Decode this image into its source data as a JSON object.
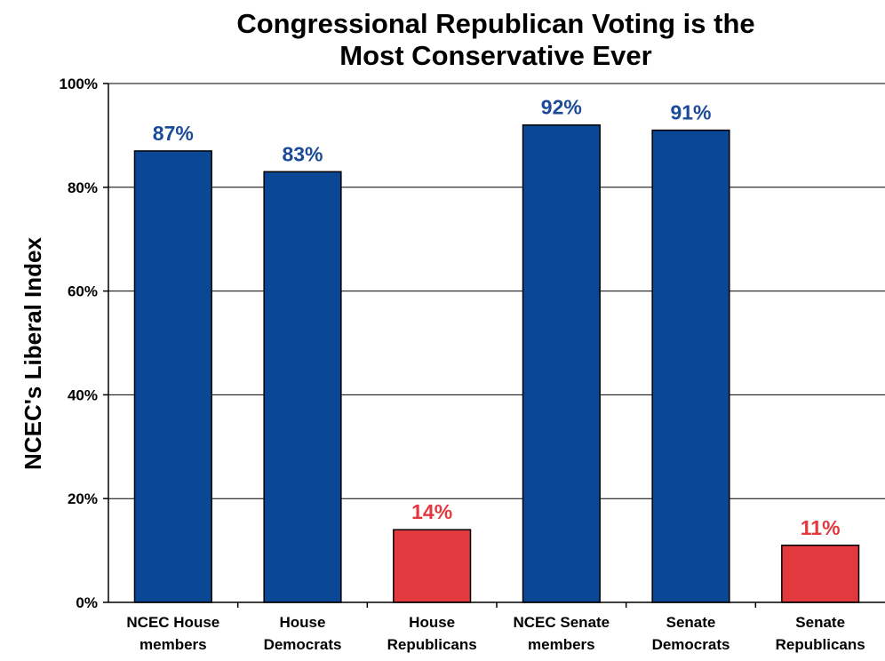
{
  "chart_data": {
    "type": "bar",
    "title_lines": [
      "Congressional Republican Voting is the",
      "Most Conservative Ever"
    ],
    "ylabel": "NCEC's Liberal Index",
    "xlabel": "",
    "ylim": [
      0,
      100
    ],
    "yticks": [
      {
        "value": 0,
        "label": "0%"
      },
      {
        "value": 20,
        "label": "20%"
      },
      {
        "value": 40,
        "label": "40%"
      },
      {
        "value": 60,
        "label": "60%"
      },
      {
        "value": 80,
        "label": "80%"
      },
      {
        "value": 100,
        "label": "100%"
      }
    ],
    "grid": true,
    "categories": [
      [
        "NCEC House",
        "members"
      ],
      [
        "House",
        "Democrats"
      ],
      [
        "House",
        "Republicans"
      ],
      [
        "NCEC Senate",
        "members"
      ],
      [
        "Senate",
        "Democrats"
      ],
      [
        "Senate",
        "Republicans"
      ]
    ],
    "values": [
      87,
      83,
      14,
      92,
      91,
      11
    ],
    "data_labels": [
      "87%",
      "83%",
      "14%",
      "92%",
      "91%",
      "11%"
    ],
    "bar_colors": [
      "#0a4794",
      "#0a4794",
      "#e2393f",
      "#0a4794",
      "#0a4794",
      "#e2393f"
    ],
    "label_colors": [
      "#1b4b96",
      "#1b4b96",
      "#e2393f",
      "#1b4b96",
      "#1b4b96",
      "#e2393f"
    ]
  }
}
